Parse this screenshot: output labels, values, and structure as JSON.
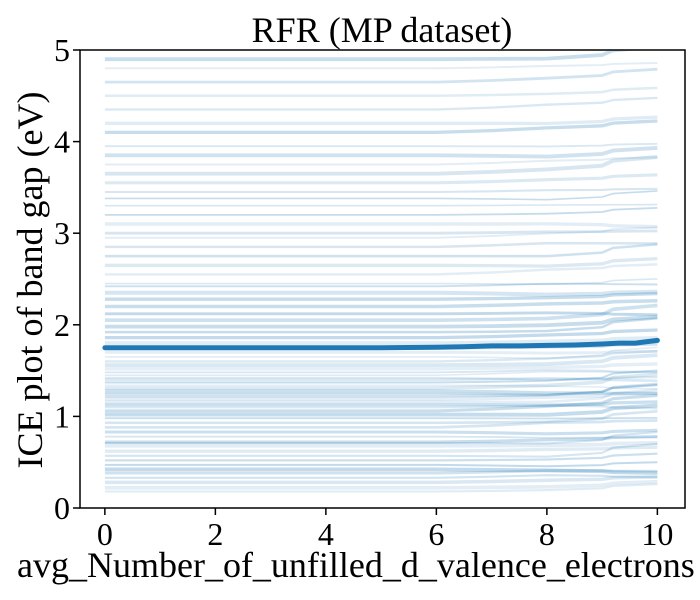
{
  "chart_data": {
    "type": "line",
    "title": "RFR (MP dataset)",
    "xlabel": "avg_Number_of_unfilled_d_valence_electrons",
    "ylabel": "ICE plot of band gap (eV)",
    "xlim": [
      -0.45,
      10.5
    ],
    "ylim": [
      0,
      5
    ],
    "x_ticks": [
      0,
      2,
      4,
      6,
      8,
      10
    ],
    "y_ticks": [
      0,
      1,
      2,
      3,
      4,
      5
    ],
    "grid": false,
    "ice_line_color": "#1f77b4",
    "average_line_color": "#1f77b4",
    "x": [
      0,
      1,
      2,
      3,
      4,
      5,
      6,
      6.5,
      7,
      7.5,
      8,
      8.5,
      9,
      9.3,
      9.6,
      10
    ],
    "series": [
      {
        "values": [
          1.75,
          1.75,
          1.75,
          1.75,
          1.75,
          1.75,
          1.755,
          1.76,
          1.77,
          1.77,
          1.775,
          1.78,
          1.79,
          1.8,
          1.8,
          1.83
        ]
      }
    ],
    "ice_curve_baselines": [
      0.18,
      0.22,
      0.28,
      0.33,
      0.38,
      0.42,
      0.47,
      0.52,
      0.57,
      0.62,
      0.68,
      0.71,
      0.72,
      0.78,
      0.83,
      0.88,
      0.93,
      0.98,
      1.02,
      1.06,
      1.1,
      1.13,
      1.16,
      1.19,
      1.22,
      1.25,
      1.28,
      1.31,
      1.34,
      1.37,
      1.4,
      1.42,
      1.45,
      1.48,
      1.52,
      1.56,
      1.6,
      1.65,
      1.7,
      1.75,
      1.8,
      1.86,
      1.92,
      1.98,
      2.05,
      2.12,
      2.2,
      2.28,
      2.35,
      2.42,
      2.45,
      2.55,
      2.65,
      2.75,
      2.85,
      2.95,
      3.0,
      3.1,
      3.2,
      3.3,
      3.38,
      3.45,
      3.55,
      3.65,
      3.75,
      3.85,
      3.95,
      4.1,
      4.2,
      4.35,
      4.5,
      4.65,
      4.8,
      4.9
    ]
  }
}
